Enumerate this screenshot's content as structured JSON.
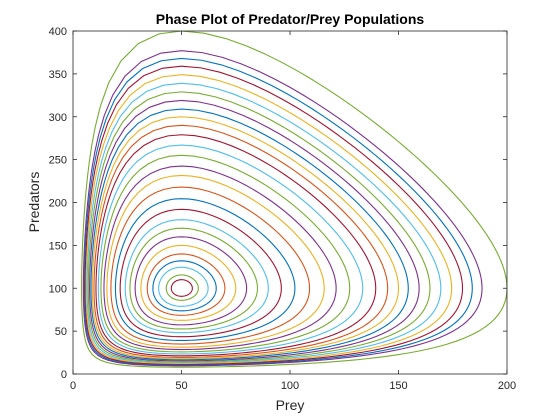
{
  "chart_data": {
    "type": "line",
    "title": "Phase Plot of Predator/Prey Populations",
    "xlabel": "Prey",
    "ylabel": "Predators",
    "xlim": [
      0,
      200
    ],
    "ylim": [
      0,
      400
    ],
    "x_ticks": [
      0,
      50,
      100,
      150,
      200
    ],
    "y_ticks": [
      0,
      50,
      100,
      150,
      200,
      250,
      300,
      350,
      400
    ],
    "x_tick_labels": [
      "0",
      "50",
      "100",
      "150",
      "200"
    ],
    "y_tick_labels": [
      "0",
      "50",
      "100",
      "150",
      "200",
      "250",
      "300",
      "350",
      "400"
    ],
    "grid": false,
    "legend": "none",
    "center": [
      50,
      100
    ],
    "colors": [
      "#0072BD",
      "#D95319",
      "#EDB120",
      "#7E2F8E",
      "#77AC30",
      "#4DBEEE",
      "#A2142F"
    ],
    "series": [
      {
        "x_max": 55,
        "y_max": 110,
        "color": "#A2142F"
      },
      {
        "x_max": 58,
        "y_max": 115,
        "color": "#77AC30"
      },
      {
        "x_max": 62,
        "y_max": 125,
        "color": "#4DBEEE"
      },
      {
        "x_max": 66,
        "y_max": 132,
        "color": "#0072BD"
      },
      {
        "x_max": 70,
        "y_max": 140,
        "color": "#D95319"
      },
      {
        "x_max": 75,
        "y_max": 150,
        "color": "#EDB120"
      },
      {
        "x_max": 80,
        "y_max": 160,
        "color": "#7E2F8E"
      },
      {
        "x_max": 85,
        "y_max": 170,
        "color": "#77AC30"
      },
      {
        "x_max": 90,
        "y_max": 180,
        "color": "#4DBEEE"
      },
      {
        "x_max": 96,
        "y_max": 192,
        "color": "#A2142F"
      },
      {
        "x_max": 102,
        "y_max": 205,
        "color": "#0072BD"
      },
      {
        "x_max": 108,
        "y_max": 220,
        "color": "#D95319"
      },
      {
        "x_max": 114,
        "y_max": 235,
        "color": "#EDB120"
      },
      {
        "x_max": 120,
        "y_max": 245,
        "color": "#7E2F8E"
      },
      {
        "x_max": 126,
        "y_max": 258,
        "color": "#77AC30"
      },
      {
        "x_max": 132,
        "y_max": 270,
        "color": "#4DBEEE"
      },
      {
        "x_max": 138,
        "y_max": 282,
        "color": "#A2142F"
      },
      {
        "x_max": 144,
        "y_max": 292,
        "color": "#D95319"
      },
      {
        "x_max": 150,
        "y_max": 300,
        "color": "#EDB120"
      },
      {
        "x_max": 155,
        "y_max": 308,
        "color": "#0072BD"
      },
      {
        "x_max": 160,
        "y_max": 318,
        "color": "#7E2F8E"
      },
      {
        "x_max": 165,
        "y_max": 328,
        "color": "#77AC30"
      },
      {
        "x_max": 170,
        "y_max": 338,
        "color": "#4DBEEE"
      },
      {
        "x_max": 175,
        "y_max": 348,
        "color": "#EDB120"
      },
      {
        "x_max": 180,
        "y_max": 358,
        "color": "#A2142F"
      },
      {
        "x_max": 185,
        "y_max": 366,
        "color": "#0072BD"
      },
      {
        "x_max": 190,
        "y_max": 374,
        "color": "#7E2F8E"
      },
      {
        "x_max": 200,
        "y_max": 400,
        "color": "#77AC30"
      }
    ]
  }
}
